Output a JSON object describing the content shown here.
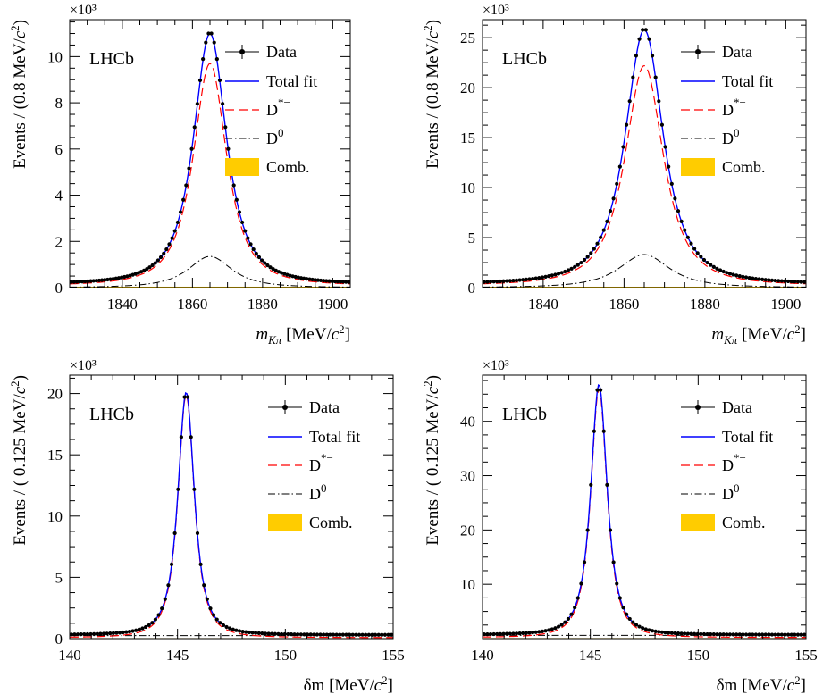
{
  "figure": {
    "panels": [
      {
        "id": "mkpi-a",
        "lhcb_label": "LHCb",
        "exponent_label": "×10³",
        "ylabel": "Events / (0.8 MeV/c²)",
        "xlabel": "m_Kπ [MeV/c²]",
        "xticks": [
          "1840",
          "1860",
          "1880",
          "1900"
        ],
        "yticks": [
          "0",
          "2",
          "4",
          "6",
          "8",
          "10"
        ],
        "legend": [
          "Data",
          "Total fit",
          "D*−",
          "D⁰",
          "Comb."
        ]
      },
      {
        "id": "mkpi-b",
        "lhcb_label": "LHCb",
        "exponent_label": "×10³",
        "ylabel": "Events / (0.8 MeV/c²)",
        "xlabel": "m_Kπ [MeV/c²]",
        "xticks": [
          "1840",
          "1860",
          "1880",
          "1900"
        ],
        "yticks": [
          "0",
          "5",
          "10",
          "15",
          "20",
          "25"
        ],
        "legend": [
          "Data",
          "Total fit",
          "D*−",
          "D⁰",
          "Comb."
        ]
      },
      {
        "id": "dm-a",
        "lhcb_label": "LHCb",
        "exponent_label": "×10³",
        "ylabel": "Events / ( 0.125 MeV/c²)",
        "xlabel": "δm [MeV/c²]",
        "xticks": [
          "140",
          "145",
          "150",
          "155"
        ],
        "yticks": [
          "0",
          "5",
          "10",
          "15",
          "20"
        ],
        "legend": [
          "Data",
          "Total fit",
          "D*−",
          "D⁰",
          "Comb."
        ]
      },
      {
        "id": "dm-b",
        "lhcb_label": "LHCb",
        "exponent_label": "×10³",
        "ylabel": "Events / ( 0.125 MeV/c²)",
        "xlabel": "δm [MeV/c²]",
        "xticks": [
          "140",
          "145",
          "150",
          "155"
        ],
        "yticks": [
          "10",
          "20",
          "30",
          "40"
        ],
        "legend": [
          "Data",
          "Total fit",
          "D*−",
          "D⁰",
          "Comb."
        ]
      }
    ],
    "colors": {
      "data": "#000000",
      "total_fit": "#0000ff",
      "dstar": "#ff0000",
      "d0": "#000000",
      "comb": "#ffcc00"
    }
  },
  "chart_data": [
    {
      "type": "line",
      "title": "",
      "xlabel": "m_Kπ [MeV/c²]",
      "ylabel": "Events / (0.8 MeV/c²)",
      "xlim": [
        1825,
        1905
      ],
      "ylim": [
        0,
        11600
      ],
      "grid": false,
      "legend_position": "top-right",
      "series": [
        {
          "name": "Data",
          "style": "points",
          "peak_x": 1865,
          "peak_y": 11050,
          "width": 6.8,
          "tail": 150
        },
        {
          "name": "Total fit",
          "style": "solid",
          "peak_x": 1865,
          "peak_y": 11000,
          "width": 6.8,
          "tail": 150
        },
        {
          "name": "D*−",
          "style": "dashed",
          "peak_x": 1865,
          "peak_y": 9700,
          "width": 6.9,
          "tail": 80
        },
        {
          "name": "D⁰",
          "style": "dash-dot",
          "peak_x": 1865,
          "peak_y": 1350,
          "width": 9,
          "tail": 0
        },
        {
          "name": "Comb.",
          "style": "filled",
          "level": 40
        }
      ]
    },
    {
      "type": "line",
      "title": "",
      "xlabel": "m_Kπ [MeV/c²]",
      "ylabel": "Events / (0.8 MeV/c²)",
      "xlim": [
        1825,
        1905
      ],
      "ylim": [
        0,
        26800
      ],
      "grid": false,
      "legend_position": "top-right",
      "series": [
        {
          "name": "Data",
          "style": "points",
          "peak_x": 1865,
          "peak_y": 25900,
          "width": 6.8,
          "tail": 350
        },
        {
          "name": "Total fit",
          "style": "solid",
          "peak_x": 1865,
          "peak_y": 25800,
          "width": 6.8,
          "tail": 350
        },
        {
          "name": "D*−",
          "style": "dashed",
          "peak_x": 1865,
          "peak_y": 22200,
          "width": 6.9,
          "tail": 200
        },
        {
          "name": "D⁰",
          "style": "dash-dot",
          "peak_x": 1865,
          "peak_y": 3300,
          "width": 9,
          "tail": 0
        },
        {
          "name": "Comb.",
          "style": "filled",
          "level": 90
        }
      ]
    },
    {
      "type": "line",
      "title": "",
      "xlabel": "δm [MeV/c²]",
      "ylabel": "Events / ( 0.125 MeV/c²)",
      "xlim": [
        140,
        155
      ],
      "ylim": [
        0,
        21500
      ],
      "grid": false,
      "legend_position": "top-right",
      "series": [
        {
          "name": "Data",
          "style": "points",
          "peak_x": 145.4,
          "peak_y": 20200,
          "width": 0.55,
          "tail": 300
        },
        {
          "name": "Total fit",
          "style": "solid",
          "peak_x": 145.4,
          "peak_y": 20100,
          "width": 0.55,
          "tail": 300
        },
        {
          "name": "D*−",
          "style": "dashed",
          "peak_x": 145.4,
          "peak_y": 19900,
          "width": 0.55,
          "tail": 80
        },
        {
          "name": "D⁰",
          "style": "dash-dot",
          "level": 250
        },
        {
          "name": "Comb.",
          "style": "filled",
          "level": 40
        }
      ]
    },
    {
      "type": "line",
      "title": "",
      "xlabel": "δm [MeV/c²]",
      "ylabel": "Events / ( 0.125 MeV/c²)",
      "xlim": [
        140,
        155
      ],
      "ylim": [
        0,
        48500
      ],
      "grid": false,
      "legend_position": "top-right",
      "series": [
        {
          "name": "Data",
          "style": "points",
          "peak_x": 145.4,
          "peak_y": 46900,
          "width": 0.55,
          "tail": 700
        },
        {
          "name": "Total fit",
          "style": "solid",
          "peak_x": 145.4,
          "peak_y": 46800,
          "width": 0.55,
          "tail": 700
        },
        {
          "name": "D*−",
          "style": "dashed",
          "peak_x": 145.4,
          "peak_y": 46000,
          "width": 0.55,
          "tail": 200
        },
        {
          "name": "D⁰",
          "style": "dash-dot",
          "level": 600
        },
        {
          "name": "Comb.",
          "style": "filled",
          "level": 100
        }
      ]
    }
  ]
}
